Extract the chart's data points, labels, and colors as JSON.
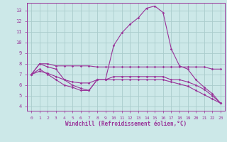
{
  "xlabel": "Windchill (Refroidissement éolien,°C)",
  "background_color": "#cce8e8",
  "grid_color": "#aacccc",
  "line_color": "#993399",
  "xlim_min": -0.5,
  "xlim_max": 23.5,
  "ylim_min": 3.6,
  "ylim_max": 13.7,
  "yticks": [
    4,
    5,
    6,
    7,
    8,
    9,
    10,
    11,
    12,
    13
  ],
  "xticks": [
    0,
    1,
    2,
    3,
    4,
    5,
    6,
    7,
    8,
    9,
    10,
    11,
    12,
    13,
    14,
    15,
    16,
    17,
    18,
    19,
    20,
    21,
    22,
    23
  ],
  "line1_x": [
    0,
    1,
    2,
    3,
    4,
    5,
    6,
    7,
    8,
    9,
    10,
    11,
    12,
    13,
    14,
    15,
    16,
    17,
    18,
    19,
    20,
    21,
    22,
    23
  ],
  "line1_y": [
    7.0,
    8.0,
    7.7,
    7.5,
    6.5,
    6.0,
    5.7,
    5.5,
    6.5,
    6.5,
    9.7,
    10.9,
    11.7,
    12.3,
    13.2,
    13.4,
    12.8,
    9.4,
    7.8,
    7.5,
    6.5,
    5.8,
    5.2,
    4.3
  ],
  "line2_x": [
    0,
    1,
    2,
    3,
    4,
    5,
    6,
    7,
    8,
    9,
    10,
    11,
    12,
    13,
    14,
    15,
    16,
    17,
    18,
    19,
    20,
    21,
    22,
    23
  ],
  "line2_y": [
    7.0,
    8.0,
    8.0,
    7.8,
    7.8,
    7.8,
    7.8,
    7.8,
    7.7,
    7.7,
    7.7,
    7.7,
    7.7,
    7.7,
    7.7,
    7.7,
    7.7,
    7.7,
    7.7,
    7.7,
    7.7,
    7.7,
    7.5,
    7.5
  ],
  "line3_x": [
    0,
    1,
    2,
    3,
    4,
    5,
    6,
    7,
    8,
    9,
    10,
    11,
    12,
    13,
    14,
    15,
    16,
    17,
    18,
    19,
    20,
    21,
    22,
    23
  ],
  "line3_y": [
    7.0,
    7.5,
    7.0,
    6.5,
    6.0,
    5.8,
    5.5,
    5.5,
    6.5,
    6.5,
    6.8,
    6.8,
    6.8,
    6.8,
    6.8,
    6.8,
    6.8,
    6.5,
    6.5,
    6.3,
    6.0,
    5.6,
    5.0,
    4.3
  ],
  "line4_x": [
    0,
    1,
    2,
    3,
    4,
    5,
    6,
    7,
    8,
    9,
    10,
    11,
    12,
    13,
    14,
    15,
    16,
    17,
    18,
    19,
    20,
    21,
    22,
    23
  ],
  "line4_y": [
    7.0,
    7.3,
    7.1,
    6.8,
    6.5,
    6.3,
    6.2,
    6.2,
    6.5,
    6.5,
    6.5,
    6.5,
    6.5,
    6.5,
    6.5,
    6.5,
    6.5,
    6.3,
    6.1,
    5.9,
    5.5,
    5.1,
    4.7,
    4.3
  ]
}
